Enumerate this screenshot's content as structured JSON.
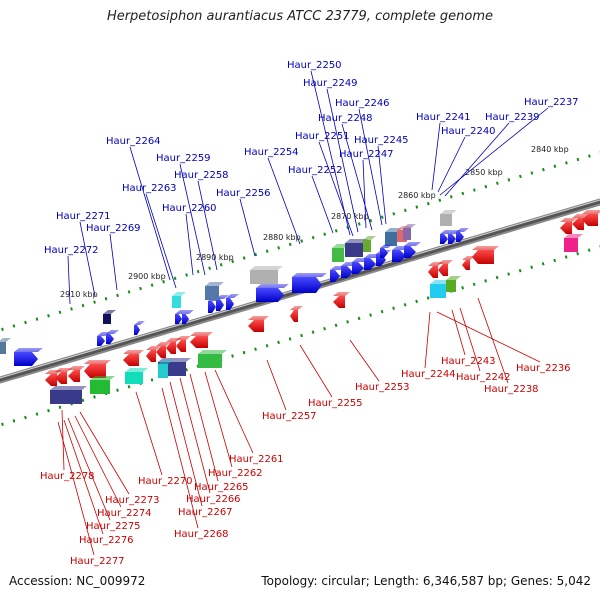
{
  "title": "Herpetosiphon aurantiacus ATCC 23779, complete genome",
  "footer": {
    "accession": "Accession: NC_009972",
    "summary": "Topology: circular; Length: 6,346,587 bp; Genes: 5,042"
  },
  "colors": {
    "forward_label": "#0000bb",
    "reverse_label": "#cc0000",
    "forward_gene": "#1010ee",
    "reverse_gene": "#ee1111",
    "tick": "#1a8c1a"
  },
  "kbp_labels": [
    "2840 kbp",
    "2850 kbp",
    "2860 kbp",
    "2870 kbp",
    "2880 kbp",
    "2890 kbp",
    "2900 kbp",
    "2910 kbp"
  ],
  "forward_labels": [
    "Haur_2250",
    "Haur_2249",
    "Haur_2246",
    "Haur_2248",
    "Haur_2241",
    "Haur_2237",
    "Haur_2239",
    "Haur_2240",
    "Haur_2251",
    "Haur_2245",
    "Haur_2264",
    "Haur_2247",
    "Haur_2254",
    "Haur_2259",
    "Haur_2252",
    "Haur_2258",
    "Haur_2263",
    "Haur_2256",
    "Haur_2260",
    "Haur_2271",
    "Haur_2269",
    "Haur_2272"
  ],
  "reverse_labels": [
    "Haur_2236",
    "Haur_2243",
    "Haur_2244",
    "Haur_2242",
    "Haur_2238",
    "Haur_2253",
    "Haur_2255",
    "Haur_2257",
    "Haur_2261",
    "Haur_2262",
    "Haur_2270",
    "Haur_2265",
    "Haur_2266",
    "Haur_2267",
    "Haur_2268",
    "Haur_2278",
    "Haur_2273",
    "Haur_2274",
    "Haur_2275",
    "Haur_2276",
    "Haur_2277"
  ]
}
